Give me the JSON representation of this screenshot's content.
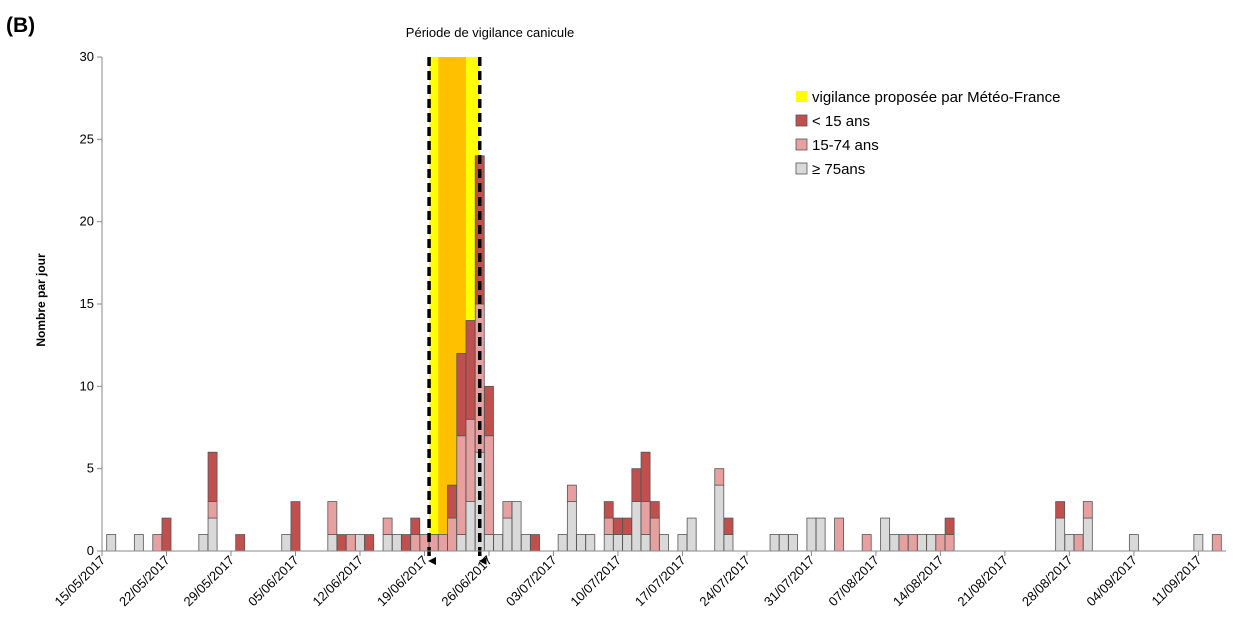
{
  "panel_label": "(B)",
  "colors": {
    "heatwave_band": "#FFFF00",
    "vigilance_core": "#FFC000",
    "under15": "#C0504D",
    "age15_74": "#E6A0A0",
    "age75plus": "#D9D9D9",
    "bar_border": "#555555"
  },
  "chart_data": {
    "type": "bar",
    "stacked": true,
    "title": "Période de vigilance canicule",
    "xlabel": "",
    "ylabel": "Nombre par jour",
    "ylim": [
      0,
      30
    ],
    "yticks": [
      0,
      5,
      10,
      15,
      20,
      25,
      30
    ],
    "x_start": "15/05/2017",
    "x_end": "14/09/2017",
    "xticks": [
      "15/05/2017",
      "22/05/2017",
      "29/05/2017",
      "05/06/2017",
      "12/06/2017",
      "19/06/2017",
      "26/06/2017",
      "03/07/2017",
      "10/07/2017",
      "17/07/2017",
      "24/07/2017",
      "31/07/2017",
      "07/08/2017",
      "14/08/2017",
      "21/08/2017",
      "28/08/2017",
      "04/09/2017",
      "11/09/2017"
    ],
    "heatwave_period": {
      "start": "19/06/2017",
      "end": "24/06/2017"
    },
    "vigilance_meteo_france": {
      "start": "20/06/2017",
      "end": "23/06/2017"
    },
    "legend": [
      "vigilance proposée par Météo-France",
      "< 15 ans",
      "15-74 ans",
      "≥ 75ans"
    ],
    "legend_position": "top-right",
    "series": [
      {
        "name": "≥ 75ans",
        "color_key": "age75plus"
      },
      {
        "name": "15-74 ans",
        "color_key": "age15_74"
      },
      {
        "name": "< 15 ans",
        "color_key": "under15"
      }
    ],
    "data": [
      {
        "date": "16/05/2017",
        "ge75": 1,
        "a15_74": 0,
        "lt15": 0
      },
      {
        "date": "19/05/2017",
        "ge75": 1,
        "a15_74": 0,
        "lt15": 0
      },
      {
        "date": "21/05/2017",
        "ge75": 0,
        "a15_74": 1,
        "lt15": 0
      },
      {
        "date": "22/05/2017",
        "ge75": 0,
        "a15_74": 0,
        "lt15": 2
      },
      {
        "date": "26/05/2017",
        "ge75": 1,
        "a15_74": 0,
        "lt15": 0
      },
      {
        "date": "27/05/2017",
        "ge75": 2,
        "a15_74": 1,
        "lt15": 3
      },
      {
        "date": "30/05/2017",
        "ge75": 0,
        "a15_74": 0,
        "lt15": 1
      },
      {
        "date": "04/06/2017",
        "ge75": 1,
        "a15_74": 0,
        "lt15": 0
      },
      {
        "date": "05/06/2017",
        "ge75": 0,
        "a15_74": 0,
        "lt15": 3
      },
      {
        "date": "09/06/2017",
        "ge75": 1,
        "a15_74": 2,
        "lt15": 0
      },
      {
        "date": "10/06/2017",
        "ge75": 0,
        "a15_74": 0,
        "lt15": 1
      },
      {
        "date": "11/06/2017",
        "ge75": 0,
        "a15_74": 1,
        "lt15": 0
      },
      {
        "date": "12/06/2017",
        "ge75": 1,
        "a15_74": 0,
        "lt15": 0
      },
      {
        "date": "13/06/2017",
        "ge75": 0,
        "a15_74": 0,
        "lt15": 1
      },
      {
        "date": "15/06/2017",
        "ge75": 1,
        "a15_74": 1,
        "lt15": 0
      },
      {
        "date": "16/06/2017",
        "ge75": 1,
        "a15_74": 0,
        "lt15": 0
      },
      {
        "date": "17/06/2017",
        "ge75": 0,
        "a15_74": 0,
        "lt15": 1
      },
      {
        "date": "18/06/2017",
        "ge75": 0,
        "a15_74": 1,
        "lt15": 1
      },
      {
        "date": "19/06/2017",
        "ge75": 0,
        "a15_74": 1,
        "lt15": 0
      },
      {
        "date": "20/06/2017",
        "ge75": 0,
        "a15_74": 1,
        "lt15": 0
      },
      {
        "date": "21/06/2017",
        "ge75": 0,
        "a15_74": 1,
        "lt15": 0
      },
      {
        "date": "22/06/2017",
        "ge75": 0,
        "a15_74": 2,
        "lt15": 2
      },
      {
        "date": "23/06/2017",
        "ge75": 1,
        "a15_74": 6,
        "lt15": 5
      },
      {
        "date": "24/06/2017",
        "ge75": 3,
        "a15_74": 5,
        "lt15": 6
      },
      {
        "date": "25/06/2017",
        "ge75": 6,
        "a15_74": 9,
        "lt15": 9
      },
      {
        "date": "26/06/2017",
        "ge75": 1,
        "a15_74": 6,
        "lt15": 3
      },
      {
        "date": "27/06/2017",
        "ge75": 1,
        "a15_74": 0,
        "lt15": 0
      },
      {
        "date": "28/06/2017",
        "ge75": 2,
        "a15_74": 1,
        "lt15": 0
      },
      {
        "date": "29/06/2017",
        "ge75": 3,
        "a15_74": 0,
        "lt15": 0
      },
      {
        "date": "30/06/2017",
        "ge75": 1,
        "a15_74": 0,
        "lt15": 0
      },
      {
        "date": "01/07/2017",
        "ge75": 0,
        "a15_74": 0,
        "lt15": 1
      },
      {
        "date": "04/07/2017",
        "ge75": 1,
        "a15_74": 0,
        "lt15": 0
      },
      {
        "date": "05/07/2017",
        "ge75": 3,
        "a15_74": 1,
        "lt15": 0
      },
      {
        "date": "06/07/2017",
        "ge75": 1,
        "a15_74": 0,
        "lt15": 0
      },
      {
        "date": "07/07/2017",
        "ge75": 1,
        "a15_74": 0,
        "lt15": 0
      },
      {
        "date": "09/07/2017",
        "ge75": 1,
        "a15_74": 1,
        "lt15": 1
      },
      {
        "date": "10/07/2017",
        "ge75": 1,
        "a15_74": 0,
        "lt15": 1
      },
      {
        "date": "11/07/2017",
        "ge75": 1,
        "a15_74": 0,
        "lt15": 1
      },
      {
        "date": "12/07/2017",
        "ge75": 3,
        "a15_74": 0,
        "lt15": 2
      },
      {
        "date": "13/07/2017",
        "ge75": 1,
        "a15_74": 2,
        "lt15": 3
      },
      {
        "date": "14/07/2017",
        "ge75": 0,
        "a15_74": 2,
        "lt15": 1
      },
      {
        "date": "15/07/2017",
        "ge75": 1,
        "a15_74": 0,
        "lt15": 0
      },
      {
        "date": "17/07/2017",
        "ge75": 1,
        "a15_74": 0,
        "lt15": 0
      },
      {
        "date": "18/07/2017",
        "ge75": 2,
        "a15_74": 0,
        "lt15": 0
      },
      {
        "date": "21/07/2017",
        "ge75": 4,
        "a15_74": 1,
        "lt15": 0
      },
      {
        "date": "22/07/2017",
        "ge75": 1,
        "a15_74": 0,
        "lt15": 1
      },
      {
        "date": "27/07/2017",
        "ge75": 1,
        "a15_74": 0,
        "lt15": 0
      },
      {
        "date": "28/07/2017",
        "ge75": 1,
        "a15_74": 0,
        "lt15": 0
      },
      {
        "date": "29/07/2017",
        "ge75": 1,
        "a15_74": 0,
        "lt15": 0
      },
      {
        "date": "31/07/2017",
        "ge75": 2,
        "a15_74": 0,
        "lt15": 0
      },
      {
        "date": "01/08/2017",
        "ge75": 2,
        "a15_74": 0,
        "lt15": 0
      },
      {
        "date": "03/08/2017",
        "ge75": 0,
        "a15_74": 2,
        "lt15": 0
      },
      {
        "date": "06/08/2017",
        "ge75": 0,
        "a15_74": 1,
        "lt15": 0
      },
      {
        "date": "08/08/2017",
        "ge75": 2,
        "a15_74": 0,
        "lt15": 0
      },
      {
        "date": "09/08/2017",
        "ge75": 1,
        "a15_74": 0,
        "lt15": 0
      },
      {
        "date": "10/08/2017",
        "ge75": 0,
        "a15_74": 1,
        "lt15": 0
      },
      {
        "date": "11/08/2017",
        "ge75": 0,
        "a15_74": 1,
        "lt15": 0
      },
      {
        "date": "12/08/2017",
        "ge75": 1,
        "a15_74": 0,
        "lt15": 0
      },
      {
        "date": "13/08/2017",
        "ge75": 1,
        "a15_74": 0,
        "lt15": 0
      },
      {
        "date": "14/08/2017",
        "ge75": 0,
        "a15_74": 1,
        "lt15": 0
      },
      {
        "date": "15/08/2017",
        "ge75": 0,
        "a15_74": 1,
        "lt15": 1
      },
      {
        "date": "27/08/2017",
        "ge75": 2,
        "a15_74": 0,
        "lt15": 1
      },
      {
        "date": "28/08/2017",
        "ge75": 1,
        "a15_74": 0,
        "lt15": 0
      },
      {
        "date": "29/08/2017",
        "ge75": 0,
        "a15_74": 1,
        "lt15": 0
      },
      {
        "date": "30/08/2017",
        "ge75": 2,
        "a15_74": 1,
        "lt15": 0
      },
      {
        "date": "04/09/2017",
        "ge75": 1,
        "a15_74": 0,
        "lt15": 0
      },
      {
        "date": "11/09/2017",
        "ge75": 1,
        "a15_74": 0,
        "lt15": 0
      },
      {
        "date": "13/09/2017",
        "ge75": 0,
        "a15_74": 1,
        "lt15": 0
      }
    ]
  }
}
